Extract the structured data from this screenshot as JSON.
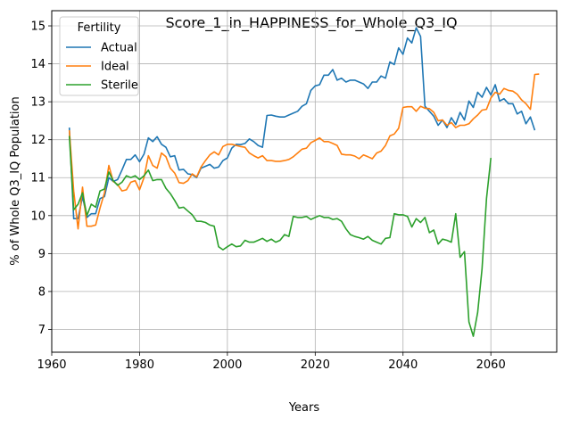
{
  "chart_data": {
    "type": "line",
    "title": "Score_1_in_HAPPINESS_for_Whole_Q3_IQ",
    "xlabel": "Years",
    "ylabel": "% of Whole Q3_IQ Population",
    "xlim": [
      1960,
      2075
    ],
    "ylim": [
      6.4,
      15.4
    ],
    "xticks": [
      1960,
      1980,
      2000,
      2020,
      2040,
      2060
    ],
    "yticks": [
      7,
      8,
      9,
      10,
      11,
      12,
      13,
      14,
      15
    ],
    "grid": true,
    "legend": {
      "title": "Fertility",
      "placement": "top-left"
    },
    "series": [
      {
        "name": "Actual",
        "color": "#1f77b4",
        "points": [
          [
            1964,
            12.32
          ],
          [
            1965,
            9.92
          ],
          [
            1966,
            9.92
          ],
          [
            1967,
            10.5
          ],
          [
            1968,
            9.95
          ],
          [
            1969,
            10.05
          ],
          [
            1970,
            10.05
          ],
          [
            1971,
            10.45
          ],
          [
            1972,
            10.5
          ],
          [
            1973,
            11.0
          ],
          [
            1974,
            10.9
          ],
          [
            1975,
            10.95
          ],
          [
            1976,
            11.2
          ],
          [
            1977,
            11.48
          ],
          [
            1978,
            11.48
          ],
          [
            1979,
            11.6
          ],
          [
            1980,
            11.42
          ],
          [
            1981,
            11.62
          ],
          [
            1982,
            12.05
          ],
          [
            1983,
            11.95
          ],
          [
            1984,
            12.08
          ],
          [
            1985,
            11.88
          ],
          [
            1986,
            11.8
          ],
          [
            1987,
            11.55
          ],
          [
            1988,
            11.58
          ],
          [
            1989,
            11.2
          ],
          [
            1990,
            11.22
          ],
          [
            1991,
            11.1
          ],
          [
            1992,
            11.08
          ],
          [
            1993,
            11.0
          ],
          [
            1994,
            11.25
          ],
          [
            1995,
            11.3
          ],
          [
            1996,
            11.35
          ],
          [
            1997,
            11.25
          ],
          [
            1998,
            11.28
          ],
          [
            1999,
            11.45
          ],
          [
            2000,
            11.52
          ],
          [
            2001,
            11.78
          ],
          [
            2002,
            11.88
          ],
          [
            2003,
            11.87
          ],
          [
            2004,
            11.9
          ],
          [
            2005,
            12.02
          ],
          [
            2006,
            11.95
          ],
          [
            2007,
            11.85
          ],
          [
            2008,
            11.8
          ],
          [
            2009,
            12.64
          ],
          [
            2010,
            12.65
          ],
          [
            2011,
            12.62
          ],
          [
            2012,
            12.6
          ],
          [
            2013,
            12.6
          ],
          [
            2014,
            12.65
          ],
          [
            2015,
            12.7
          ],
          [
            2016,
            12.75
          ],
          [
            2017,
            12.88
          ],
          [
            2018,
            12.95
          ],
          [
            2019,
            13.3
          ],
          [
            2020,
            13.42
          ],
          [
            2021,
            13.45
          ],
          [
            2022,
            13.7
          ],
          [
            2023,
            13.7
          ],
          [
            2024,
            13.85
          ],
          [
            2025,
            13.57
          ],
          [
            2026,
            13.62
          ],
          [
            2027,
            13.52
          ],
          [
            2028,
            13.57
          ],
          [
            2029,
            13.57
          ],
          [
            2030,
            13.52
          ],
          [
            2031,
            13.47
          ],
          [
            2032,
            13.35
          ],
          [
            2033,
            13.52
          ],
          [
            2034,
            13.52
          ],
          [
            2035,
            13.68
          ],
          [
            2036,
            13.62
          ],
          [
            2037,
            14.05
          ],
          [
            2038,
            13.98
          ],
          [
            2039,
            14.42
          ],
          [
            2040,
            14.25
          ],
          [
            2041,
            14.68
          ],
          [
            2042,
            14.55
          ],
          [
            2043,
            14.95
          ],
          [
            2044,
            14.72
          ],
          [
            2045,
            12.88
          ],
          [
            2046,
            12.75
          ],
          [
            2047,
            12.62
          ],
          [
            2048,
            12.38
          ],
          [
            2049,
            12.52
          ],
          [
            2050,
            12.32
          ],
          [
            2051,
            12.58
          ],
          [
            2052,
            12.4
          ],
          [
            2053,
            12.72
          ],
          [
            2054,
            12.52
          ],
          [
            2055,
            13.02
          ],
          [
            2056,
            12.85
          ],
          [
            2057,
            13.25
          ],
          [
            2058,
            13.12
          ],
          [
            2059,
            13.38
          ],
          [
            2060,
            13.18
          ],
          [
            2061,
            13.45
          ],
          [
            2062,
            13.02
          ],
          [
            2063,
            13.08
          ],
          [
            2064,
            12.95
          ],
          [
            2065,
            12.95
          ],
          [
            2066,
            12.68
          ],
          [
            2067,
            12.75
          ],
          [
            2068,
            12.42
          ],
          [
            2069,
            12.6
          ],
          [
            2070,
            12.25
          ]
        ]
      },
      {
        "name": "Ideal",
        "color": "#ff7f0e",
        "points": [
          [
            1964,
            12.25
          ],
          [
            1965,
            10.65
          ],
          [
            1966,
            9.65
          ],
          [
            1967,
            10.75
          ],
          [
            1968,
            9.72
          ],
          [
            1969,
            9.72
          ],
          [
            1970,
            9.75
          ],
          [
            1971,
            10.2
          ],
          [
            1972,
            10.6
          ],
          [
            1973,
            11.32
          ],
          [
            1974,
            10.9
          ],
          [
            1975,
            10.82
          ],
          [
            1976,
            10.65
          ],
          [
            1977,
            10.68
          ],
          [
            1978,
            10.88
          ],
          [
            1979,
            10.92
          ],
          [
            1980,
            10.68
          ],
          [
            1981,
            11.0
          ],
          [
            1982,
            11.58
          ],
          [
            1983,
            11.32
          ],
          [
            1984,
            11.25
          ],
          [
            1985,
            11.65
          ],
          [
            1986,
            11.55
          ],
          [
            1987,
            11.25
          ],
          [
            1988,
            11.12
          ],
          [
            1989,
            10.87
          ],
          [
            1990,
            10.85
          ],
          [
            1991,
            10.92
          ],
          [
            1992,
            11.1
          ],
          [
            1993,
            11.02
          ],
          [
            1994,
            11.28
          ],
          [
            1995,
            11.45
          ],
          [
            1996,
            11.6
          ],
          [
            1997,
            11.68
          ],
          [
            1998,
            11.6
          ],
          [
            1999,
            11.82
          ],
          [
            2000,
            11.88
          ],
          [
            2001,
            11.88
          ],
          [
            2002,
            11.85
          ],
          [
            2003,
            11.82
          ],
          [
            2004,
            11.8
          ],
          [
            2005,
            11.65
          ],
          [
            2006,
            11.58
          ],
          [
            2007,
            11.52
          ],
          [
            2008,
            11.58
          ],
          [
            2009,
            11.45
          ],
          [
            2010,
            11.45
          ],
          [
            2011,
            11.43
          ],
          [
            2012,
            11.43
          ],
          [
            2013,
            11.45
          ],
          [
            2014,
            11.48
          ],
          [
            2015,
            11.55
          ],
          [
            2016,
            11.65
          ],
          [
            2017,
            11.75
          ],
          [
            2018,
            11.78
          ],
          [
            2019,
            11.92
          ],
          [
            2020,
            11.98
          ],
          [
            2021,
            12.05
          ],
          [
            2022,
            11.95
          ],
          [
            2023,
            11.95
          ],
          [
            2024,
            11.9
          ],
          [
            2025,
            11.85
          ],
          [
            2026,
            11.62
          ],
          [
            2027,
            11.6
          ],
          [
            2028,
            11.6
          ],
          [
            2029,
            11.57
          ],
          [
            2030,
            11.5
          ],
          [
            2031,
            11.6
          ],
          [
            2032,
            11.55
          ],
          [
            2033,
            11.5
          ],
          [
            2034,
            11.65
          ],
          [
            2035,
            11.7
          ],
          [
            2036,
            11.85
          ],
          [
            2037,
            12.1
          ],
          [
            2038,
            12.15
          ],
          [
            2039,
            12.3
          ],
          [
            2040,
            12.85
          ],
          [
            2041,
            12.87
          ],
          [
            2042,
            12.87
          ],
          [
            2043,
            12.75
          ],
          [
            2044,
            12.88
          ],
          [
            2045,
            12.83
          ],
          [
            2046,
            12.82
          ],
          [
            2047,
            12.72
          ],
          [
            2048,
            12.5
          ],
          [
            2049,
            12.52
          ],
          [
            2050,
            12.38
          ],
          [
            2051,
            12.45
          ],
          [
            2052,
            12.32
          ],
          [
            2053,
            12.38
          ],
          [
            2054,
            12.38
          ],
          [
            2055,
            12.42
          ],
          [
            2056,
            12.55
          ],
          [
            2057,
            12.65
          ],
          [
            2058,
            12.78
          ],
          [
            2059,
            12.8
          ],
          [
            2060,
            13.1
          ],
          [
            2061,
            13.25
          ],
          [
            2062,
            13.2
          ],
          [
            2063,
            13.35
          ],
          [
            2064,
            13.3
          ],
          [
            2065,
            13.28
          ],
          [
            2066,
            13.2
          ],
          [
            2067,
            13.05
          ],
          [
            2068,
            12.95
          ],
          [
            2069,
            12.8
          ],
          [
            2070,
            13.72
          ],
          [
            2071,
            13.73
          ]
        ]
      },
      {
        "name": "Sterile",
        "color": "#2ca02c",
        "points": [
          [
            1964,
            12.1
          ],
          [
            1965,
            10.15
          ],
          [
            1966,
            10.3
          ],
          [
            1967,
            10.6
          ],
          [
            1968,
            10.0
          ],
          [
            1969,
            10.3
          ],
          [
            1970,
            10.22
          ],
          [
            1971,
            10.65
          ],
          [
            1972,
            10.7
          ],
          [
            1973,
            11.15
          ],
          [
            1974,
            10.92
          ],
          [
            1975,
            10.8
          ],
          [
            1976,
            10.88
          ],
          [
            1977,
            11.05
          ],
          [
            1978,
            11.0
          ],
          [
            1979,
            11.05
          ],
          [
            1980,
            10.95
          ],
          [
            1981,
            11.05
          ],
          [
            1982,
            11.2
          ],
          [
            1983,
            10.92
          ],
          [
            1984,
            10.95
          ],
          [
            1985,
            10.95
          ],
          [
            1986,
            10.72
          ],
          [
            1987,
            10.58
          ],
          [
            1988,
            10.4
          ],
          [
            1989,
            10.2
          ],
          [
            1990,
            10.22
          ],
          [
            1991,
            10.12
          ],
          [
            1992,
            10.02
          ],
          [
            1993,
            9.85
          ],
          [
            1994,
            9.85
          ],
          [
            1995,
            9.82
          ],
          [
            1996,
            9.75
          ],
          [
            1997,
            9.72
          ],
          [
            1998,
            9.18
          ],
          [
            1999,
            9.1
          ],
          [
            2000,
            9.18
          ],
          [
            2001,
            9.25
          ],
          [
            2002,
            9.18
          ],
          [
            2003,
            9.2
          ],
          [
            2004,
            9.35
          ],
          [
            2005,
            9.3
          ],
          [
            2006,
            9.3
          ],
          [
            2007,
            9.35
          ],
          [
            2008,
            9.4
          ],
          [
            2009,
            9.32
          ],
          [
            2010,
            9.38
          ],
          [
            2011,
            9.3
          ],
          [
            2012,
            9.35
          ],
          [
            2013,
            9.5
          ],
          [
            2014,
            9.45
          ],
          [
            2015,
            9.98
          ],
          [
            2016,
            9.95
          ],
          [
            2017,
            9.95
          ],
          [
            2018,
            9.98
          ],
          [
            2019,
            9.9
          ],
          [
            2020,
            9.95
          ],
          [
            2021,
            10.0
          ],
          [
            2022,
            9.95
          ],
          [
            2023,
            9.95
          ],
          [
            2024,
            9.9
          ],
          [
            2025,
            9.92
          ],
          [
            2026,
            9.85
          ],
          [
            2027,
            9.65
          ],
          [
            2028,
            9.5
          ],
          [
            2029,
            9.45
          ],
          [
            2030,
            9.42
          ],
          [
            2031,
            9.38
          ],
          [
            2032,
            9.45
          ],
          [
            2033,
            9.35
          ],
          [
            2034,
            9.3
          ],
          [
            2035,
            9.25
          ],
          [
            2036,
            9.4
          ],
          [
            2037,
            9.42
          ],
          [
            2038,
            10.05
          ],
          [
            2039,
            10.02
          ],
          [
            2040,
            10.02
          ],
          [
            2041,
            9.98
          ],
          [
            2042,
            9.7
          ],
          [
            2043,
            9.92
          ],
          [
            2044,
            9.82
          ],
          [
            2045,
            9.95
          ],
          [
            2046,
            9.55
          ],
          [
            2047,
            9.62
          ],
          [
            2048,
            9.25
          ],
          [
            2049,
            9.38
          ],
          [
            2050,
            9.35
          ],
          [
            2051,
            9.3
          ],
          [
            2052,
            10.05
          ],
          [
            2053,
            8.9
          ],
          [
            2054,
            9.05
          ],
          [
            2055,
            7.2
          ],
          [
            2056,
            6.82
          ],
          [
            2057,
            7.45
          ],
          [
            2058,
            8.6
          ],
          [
            2059,
            10.45
          ],
          [
            2060,
            11.52
          ]
        ]
      }
    ]
  }
}
